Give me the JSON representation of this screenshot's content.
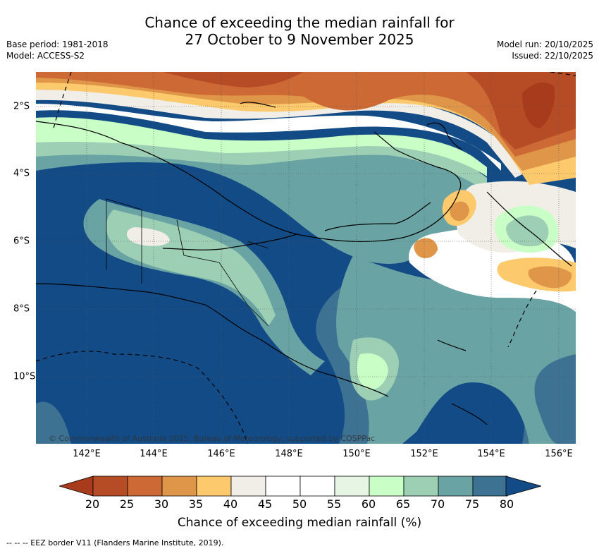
{
  "title_line1": "Chance of exceeding the median rainfall for",
  "title_line2": "27 October to 9 November 2025",
  "meta_left": {
    "base_period": "Base period: 1981-2018",
    "model": "Model: ACCESS-S2"
  },
  "meta_right": {
    "model_run": "Model run: 20/10/2025",
    "issued": "Issued: 22/10/2025"
  },
  "map": {
    "copyright": "© Commonwealth of Australia 2025, Bureau of Meteorology, supported by COSPPac",
    "lon_ticks": [
      "142°E",
      "144°E",
      "146°E",
      "148°E",
      "150°E",
      "152°E",
      "154°E",
      "156°E"
    ],
    "lat_ticks": [
      "2°S",
      "4°S",
      "6°S",
      "8°S",
      "10°S"
    ]
  },
  "colorbar": {
    "labels": [
      "20",
      "25",
      "30",
      "35",
      "40",
      "45",
      "50",
      "55",
      "60",
      "65",
      "70",
      "75",
      "80"
    ],
    "colors": [
      "#a83b1b",
      "#b64c26",
      "#cd6935",
      "#df9649",
      "#fcc96d",
      "#f1ede7",
      "#ffffff",
      "#ffffff",
      "#e7f5e5",
      "#c9fec7",
      "#9dcfb5",
      "#6aa3a4",
      "#3d7292",
      "#124b86"
    ],
    "title": "Chance of exceeding median rainfall (%)"
  },
  "footer": "--  --  -- EEZ border V11 (Flanders Marine Institute, 2019)."
}
